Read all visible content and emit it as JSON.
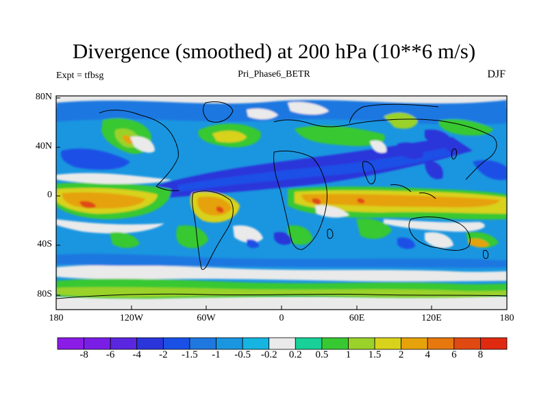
{
  "title": "Divergence (smoothed) at 200 hPa (10**6 m/s)",
  "left_label": "Expt = tfbsg",
  "center_label": "Pri_Phase6_BETR",
  "right_label": "DJF",
  "lat_ticks": [
    "80N",
    "40N",
    "0",
    "40S",
    "80S"
  ],
  "lon_ticks": [
    "180",
    "120W",
    "60W",
    "0",
    "60E",
    "120E",
    "180"
  ],
  "colorbar": {
    "labels": [
      "-8",
      "-6",
      "-4",
      "-2",
      "-1.5",
      "-1",
      "-0.5",
      "-0.2",
      "0.2",
      "0.5",
      "1",
      "1.5",
      "2",
      "4",
      "6",
      "8"
    ],
    "colors": [
      "#8a1ce6",
      "#7a1ee6",
      "#5a26df",
      "#2a36da",
      "#1a50e6",
      "#1e78e0",
      "#1a96e0",
      "#16b4e0",
      "#eaeaea",
      "#18d098",
      "#38c832",
      "#9ad22a",
      "#d8d21c",
      "#e6a20a",
      "#e6780e",
      "#e04a12",
      "#e02a10"
    ]
  },
  "colors": {
    "background": "#ffffff",
    "coast": "#000000"
  }
}
